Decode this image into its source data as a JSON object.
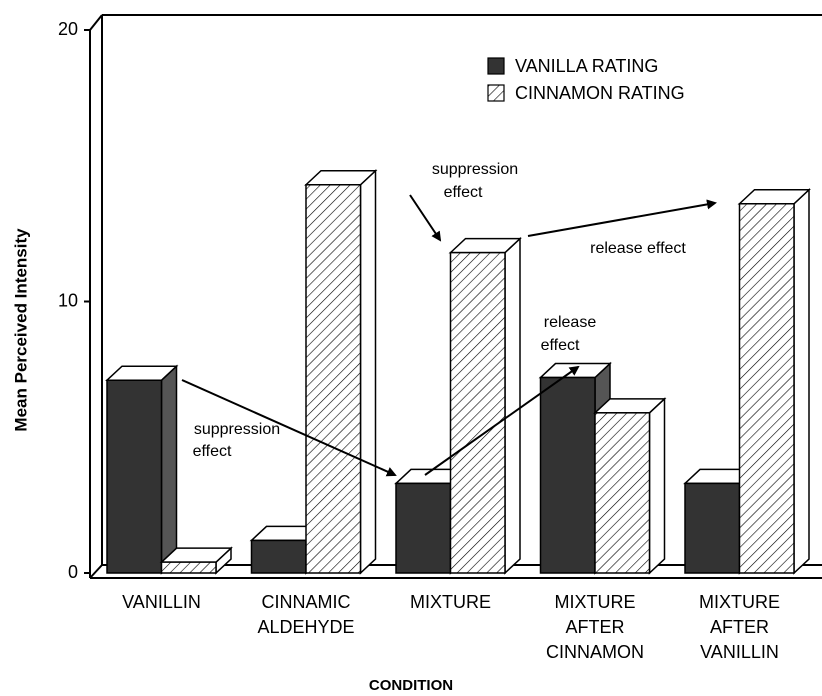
{
  "chart_data": {
    "type": "bar3d",
    "ylabel": "Mean Perceived Intensity",
    "xlabel": "CONDITION",
    "categories": [
      [
        "VANILLIN"
      ],
      [
        "CINNAMIC",
        "ALDEHYDE"
      ],
      [
        "MIXTURE"
      ],
      [
        "MIXTURE",
        "AFTER",
        "CINNAMON"
      ],
      [
        "MIXTURE",
        "AFTER",
        "VANILLIN"
      ]
    ],
    "series": [
      {
        "name": "VANILLA RATING",
        "color": "#333333",
        "hatch": false,
        "values": [
          7.1,
          1.2,
          3.3,
          7.2,
          3.3
        ]
      },
      {
        "name": "CINNAMON RATING",
        "color": "#ffffff",
        "hatch": true,
        "values": [
          0.4,
          14.3,
          11.8,
          5.9,
          13.6
        ]
      }
    ],
    "ylim": [
      0,
      20
    ],
    "yticks": [
      0,
      10,
      20
    ],
    "annotations": [
      {
        "lines": [
          "suppression",
          "effect"
        ]
      },
      {
        "lines": [
          "suppression",
          "effect"
        ]
      },
      {
        "lines": [
          "release effect"
        ]
      },
      {
        "lines": [
          "release",
          "effect"
        ]
      }
    ]
  }
}
